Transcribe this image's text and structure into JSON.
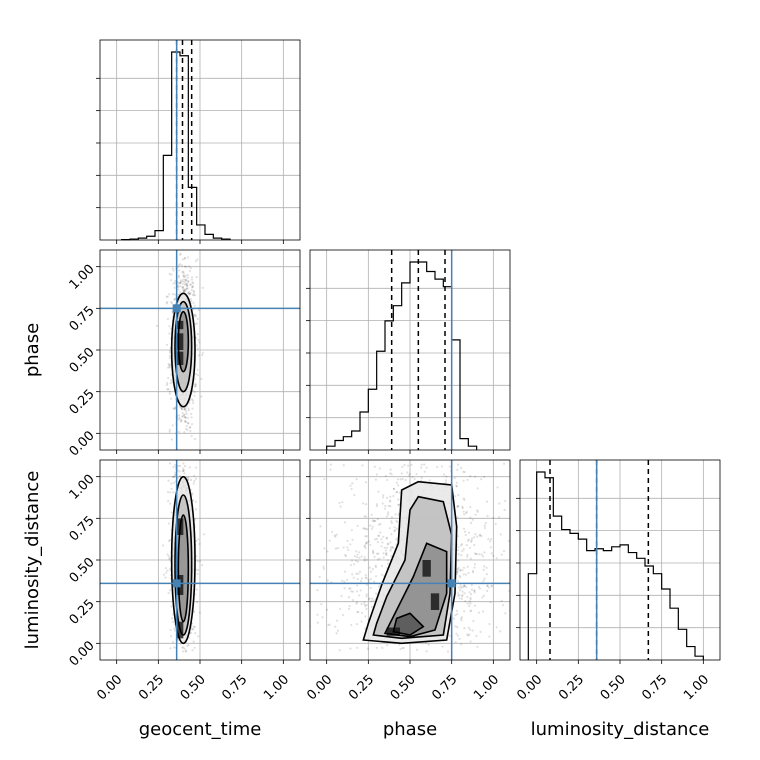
{
  "chart_data": {
    "type": "corner",
    "parameters": [
      "geocent_time",
      "phase",
      "luminosity_distance"
    ],
    "axis_ticks": [
      "0.00",
      "0.25",
      "0.50",
      "0.75",
      "1.00"
    ],
    "axis_range": [
      -0.1,
      1.1
    ],
    "truths": {
      "geocent_time": 0.36,
      "phase": 0.75,
      "luminosity_distance": 0.36
    },
    "grid": true,
    "histograms": {
      "geocent_time": {
        "bin_edges": [
          0.03,
          0.08,
          0.13,
          0.18,
          0.23,
          0.28,
          0.33,
          0.38,
          0.43,
          0.48,
          0.53,
          0.58,
          0.63,
          0.68
        ],
        "counts": [
          0.002,
          0.005,
          0.01,
          0.02,
          0.05,
          0.45,
          1.0,
          0.98,
          0.28,
          0.08,
          0.03,
          0.01,
          0.005
        ],
        "quantiles": [
          0.36,
          0.395,
          0.45
        ]
      },
      "phase": {
        "bin_edges": [
          0.0,
          0.05,
          0.1,
          0.15,
          0.2,
          0.25,
          0.3,
          0.35,
          0.4,
          0.45,
          0.5,
          0.55,
          0.6,
          0.65,
          0.7,
          0.75,
          0.8,
          0.85,
          0.9
        ],
        "counts": [
          0.02,
          0.05,
          0.07,
          0.1,
          0.2,
          0.32,
          0.52,
          0.68,
          0.76,
          0.88,
          0.99,
          0.99,
          0.94,
          0.9,
          0.86,
          0.58,
          0.06,
          0.02
        ],
        "quantiles": [
          0.39,
          0.55,
          0.71
        ]
      },
      "luminosity_distance": {
        "bin_edges": [
          -0.05,
          0.0,
          0.05,
          0.1,
          0.15,
          0.2,
          0.25,
          0.3,
          0.35,
          0.4,
          0.45,
          0.5,
          0.55,
          0.6,
          0.65,
          0.7,
          0.75,
          0.8,
          0.85,
          0.9,
          0.95,
          1.0
        ],
        "counts": [
          0.45,
          0.98,
          0.95,
          0.75,
          0.68,
          0.66,
          0.63,
          0.57,
          0.58,
          0.57,
          0.59,
          0.6,
          0.56,
          0.53,
          0.49,
          0.45,
          0.37,
          0.27,
          0.16,
          0.07,
          0.02
        ],
        "quantiles": [
          0.08,
          0.36,
          0.67
        ]
      }
    },
    "density_2d": [
      {
        "x": "geocent_time",
        "y": "phase",
        "center": [
          0.4,
          0.52
        ],
        "spread": [
          0.03,
          0.22
        ],
        "spread_points": 900,
        "contour_levels": [
          {
            "rx": 0.07,
            "ry": 0.34,
            "cy": 0.5
          },
          {
            "rx": 0.05,
            "ry": 0.27,
            "cy": 0.52
          },
          {
            "rx": 0.03,
            "ry": 0.18,
            "cy": 0.55
          }
        ],
        "dark_cells": [
          [
            0.38,
            0.55,
            0.04,
            0.1
          ],
          [
            0.38,
            0.45,
            0.04,
            0.08
          ],
          [
            0.38,
            0.65,
            0.04,
            0.05
          ]
        ]
      },
      {
        "x": "geocent_time",
        "y": "luminosity_distance",
        "center": [
          0.4,
          0.5
        ],
        "spread": [
          0.03,
          0.3
        ],
        "spread_points": 900,
        "contour_levels": [
          {
            "rx": 0.07,
            "ry": 0.5,
            "cy": 0.5
          },
          {
            "rx": 0.05,
            "ry": 0.42,
            "cy": 0.47
          },
          {
            "rx": 0.03,
            "ry": 0.32,
            "cy": 0.45
          }
        ],
        "dark_cells": [
          [
            0.38,
            0.08,
            0.04,
            0.1
          ],
          [
            0.38,
            0.35,
            0.04,
            0.12
          ],
          [
            0.38,
            0.7,
            0.04,
            0.1
          ]
        ]
      },
      {
        "x": "phase",
        "y": "luminosity_distance",
        "center": [
          0.55,
          0.45
        ],
        "spread": [
          0.2,
          0.28
        ],
        "spread_points": 1400,
        "contour_polygons": [
          [
            [
              0.22,
              0.02
            ],
            [
              0.45,
              0.0
            ],
            [
              0.72,
              0.02
            ],
            [
              0.77,
              0.3
            ],
            [
              0.78,
              0.7
            ],
            [
              0.75,
              0.95
            ],
            [
              0.55,
              0.97
            ],
            [
              0.45,
              0.92
            ],
            [
              0.43,
              0.6
            ],
            [
              0.33,
              0.35
            ],
            [
              0.25,
              0.12
            ]
          ],
          [
            [
              0.28,
              0.05
            ],
            [
              0.45,
              0.03
            ],
            [
              0.7,
              0.05
            ],
            [
              0.74,
              0.3
            ],
            [
              0.75,
              0.65
            ],
            [
              0.7,
              0.85
            ],
            [
              0.55,
              0.88
            ],
            [
              0.5,
              0.8
            ],
            [
              0.47,
              0.5
            ],
            [
              0.36,
              0.28
            ],
            [
              0.3,
              0.12
            ]
          ],
          [
            [
              0.35,
              0.06
            ],
            [
              0.5,
              0.04
            ],
            [
              0.65,
              0.08
            ],
            [
              0.72,
              0.3
            ],
            [
              0.72,
              0.55
            ],
            [
              0.6,
              0.6
            ],
            [
              0.52,
              0.4
            ],
            [
              0.42,
              0.2
            ]
          ],
          [
            [
              0.4,
              0.07
            ],
            [
              0.5,
              0.05
            ],
            [
              0.58,
              0.1
            ],
            [
              0.5,
              0.18
            ],
            [
              0.42,
              0.15
            ]
          ]
        ],
        "dark_cells": [
          [
            0.4,
            0.07,
            0.08,
            0.05
          ],
          [
            0.6,
            0.45,
            0.05,
            0.1
          ],
          [
            0.65,
            0.25,
            0.05,
            0.1
          ]
        ]
      }
    ]
  }
}
